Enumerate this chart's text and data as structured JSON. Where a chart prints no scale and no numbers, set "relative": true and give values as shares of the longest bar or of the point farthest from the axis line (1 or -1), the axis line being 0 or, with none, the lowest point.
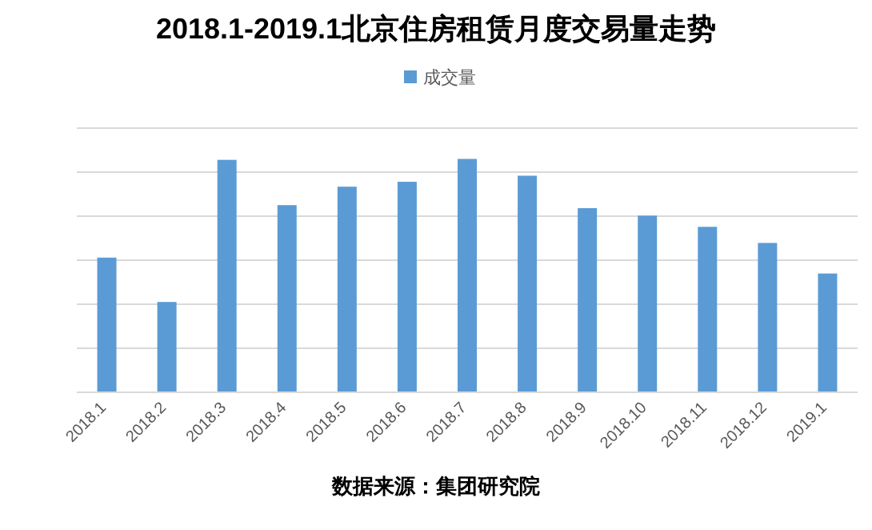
{
  "chart_data": {
    "type": "bar",
    "title": "2018.1-2019.1北京住房租赁月度交易量走势",
    "relative": true,
    "categories": [
      "2018.1",
      "2018.2",
      "2018.3",
      "2018.4",
      "2018.5",
      "2018.6",
      "2018.7",
      "2018.8",
      "2018.9",
      "2018.10",
      "2018.11",
      "2018.12",
      "2019.1"
    ],
    "series": [
      {
        "name": "成交量",
        "color": "#5b9bd5",
        "values": [
          0.577,
          0.387,
          0.996,
          0.802,
          0.881,
          0.902,
          1,
          0.928,
          0.789,
          0.757,
          0.709,
          0.64,
          0.509
        ]
      }
    ],
    "grid": "y",
    "legend": "top",
    "annotations": [
      "数据来源：集团研究院"
    ]
  }
}
